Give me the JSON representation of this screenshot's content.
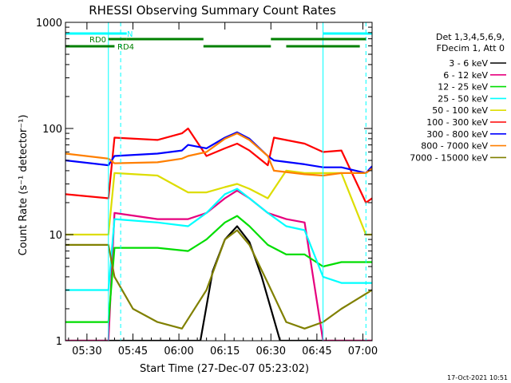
{
  "chart_data": {
    "type": "line",
    "title": "RHESSI Observing Summary Count Rates",
    "xlabel": "Start Time (27-Dec-07 05:23:02)",
    "ylabel": "Count Rate (s⁻¹ detector⁻¹)",
    "footer": "17-Oct-2021 10:51",
    "yscale": "log",
    "ylim": [
      1,
      1000
    ],
    "xlim_minutes_from_start": [
      0,
      100
    ],
    "x_ticks": [
      {
        "label": "05:30",
        "minute": 7
      },
      {
        "label": "05:45",
        "minute": 22
      },
      {
        "label": "06:00",
        "minute": 37
      },
      {
        "label": "06:15",
        "minute": 52
      },
      {
        "label": "06:30",
        "minute": 67
      },
      {
        "label": "06:45",
        "minute": 82
      },
      {
        "label": "07:00",
        "minute": 97
      }
    ],
    "y_ticks": [
      {
        "label": "1",
        "value": 1
      },
      {
        "label": "10",
        "value": 10
      },
      {
        "label": "100",
        "value": 100
      },
      {
        "label": "1000",
        "value": 1000
      }
    ],
    "legend_header": [
      "Det 1,3,4,5,6,9,",
      "FDecim 1, Att 0"
    ],
    "series": [
      {
        "name": "3 - 6 keV",
        "color": "#000000",
        "x": [
          0,
          44,
          48,
          52,
          56,
          60,
          64,
          70,
          100
        ],
        "y": [
          1.0,
          1.0,
          4.5,
          9.0,
          12.0,
          8.5,
          4.0,
          1.0,
          1.0
        ]
      },
      {
        "name": "6 - 12 keV",
        "color": "#e6007e",
        "x": [
          0,
          14,
          16,
          30,
          40,
          46,
          52,
          56,
          60,
          66,
          72,
          78,
          84,
          100
        ],
        "y": [
          1.0,
          1.0,
          16,
          14,
          14,
          16,
          22,
          26,
          22,
          16,
          14,
          13,
          1.0,
          1.0
        ]
      },
      {
        "name": "12 - 25 keV",
        "color": "#00dd00",
        "x": [
          0,
          14,
          16,
          30,
          40,
          46,
          52,
          56,
          60,
          66,
          72,
          78,
          84,
          90,
          100
        ],
        "y": [
          1.5,
          1.5,
          7.5,
          7.5,
          7.0,
          9.0,
          13,
          15,
          12,
          8.0,
          6.5,
          6.5,
          5.0,
          5.5,
          5.5
        ]
      },
      {
        "name": "25 - 50 keV",
        "color": "#00ffff",
        "x": [
          0,
          14,
          16,
          30,
          40,
          46,
          52,
          56,
          60,
          66,
          72,
          78,
          84,
          90,
          100
        ],
        "y": [
          3.0,
          3.0,
          14,
          13,
          12,
          16,
          24,
          27,
          22,
          16,
          12,
          11,
          4.0,
          3.5,
          3.5
        ]
      },
      {
        "name": "50 - 100 keV",
        "color": "#dddd00",
        "x": [
          0,
          14,
          16,
          30,
          40,
          46,
          52,
          56,
          60,
          66,
          72,
          78,
          84,
          90,
          98,
          100
        ],
        "y": [
          10,
          10,
          38,
          36,
          25,
          25,
          28,
          30,
          27,
          22,
          40,
          38,
          38,
          38,
          10,
          10
        ]
      },
      {
        "name": "100 - 300 keV",
        "color": "#ff0000",
        "x": [
          0,
          14,
          16,
          30,
          38,
          40,
          46,
          52,
          56,
          60,
          66,
          68,
          78,
          84,
          90,
          98,
          100
        ],
        "y": [
          24,
          22,
          82,
          78,
          90,
          100,
          55,
          65,
          72,
          62,
          45,
          82,
          72,
          60,
          62,
          20,
          22
        ]
      },
      {
        "name": "300 - 800 keV",
        "color": "#0000ff",
        "x": [
          0,
          14,
          16,
          30,
          38,
          40,
          46,
          52,
          56,
          60,
          66,
          68,
          78,
          84,
          90,
          98,
          100
        ],
        "y": [
          50,
          45,
          55,
          58,
          62,
          70,
          65,
          82,
          92,
          80,
          55,
          50,
          46,
          43,
          43,
          38,
          44
        ]
      },
      {
        "name": "800 - 7000 keV",
        "color": "#ff7f00",
        "x": [
          0,
          14,
          16,
          30,
          38,
          40,
          46,
          52,
          56,
          60,
          66,
          68,
          78,
          84,
          90,
          98,
          100
        ],
        "y": [
          58,
          52,
          47,
          48,
          52,
          55,
          60,
          80,
          90,
          78,
          55,
          40,
          37,
          36,
          38,
          38,
          42
        ]
      },
      {
        "name": "7000 - 15000 keV",
        "color": "#808000",
        "x": [
          0,
          14,
          16,
          22,
          30,
          38,
          46,
          52,
          56,
          60,
          66,
          72,
          78,
          84,
          90,
          100
        ],
        "y": [
          8.0,
          8.0,
          4.0,
          2.0,
          1.5,
          1.3,
          3.0,
          9.0,
          11,
          8.0,
          3.5,
          1.5,
          1.3,
          1.5,
          2.0,
          3.0
        ]
      }
    ],
    "state_bars": [
      {
        "label": "N",
        "color": "#00ffff",
        "segments": [
          [
            0,
            20
          ],
          [
            84,
            100
          ]
        ]
      },
      {
        "label": "RD0",
        "color": "#008000",
        "segments": [
          [
            14,
            20
          ],
          [
            20,
            45
          ],
          [
            67,
            98
          ]
        ]
      },
      {
        "label": "RD4",
        "color": "#008000",
        "segments": [
          [
            0,
            16
          ],
          [
            45,
            67
          ],
          [
            72,
            96
          ]
        ]
      }
    ],
    "markers": [
      {
        "minute": 14,
        "style": "solid",
        "color": "#00ffff"
      },
      {
        "minute": 18,
        "style": "dashed",
        "color": "#00ffff"
      },
      {
        "minute": 84,
        "style": "solid",
        "color": "#00ffff"
      },
      {
        "minute": 98,
        "style": "dashed",
        "color": "#00ffff"
      }
    ]
  }
}
